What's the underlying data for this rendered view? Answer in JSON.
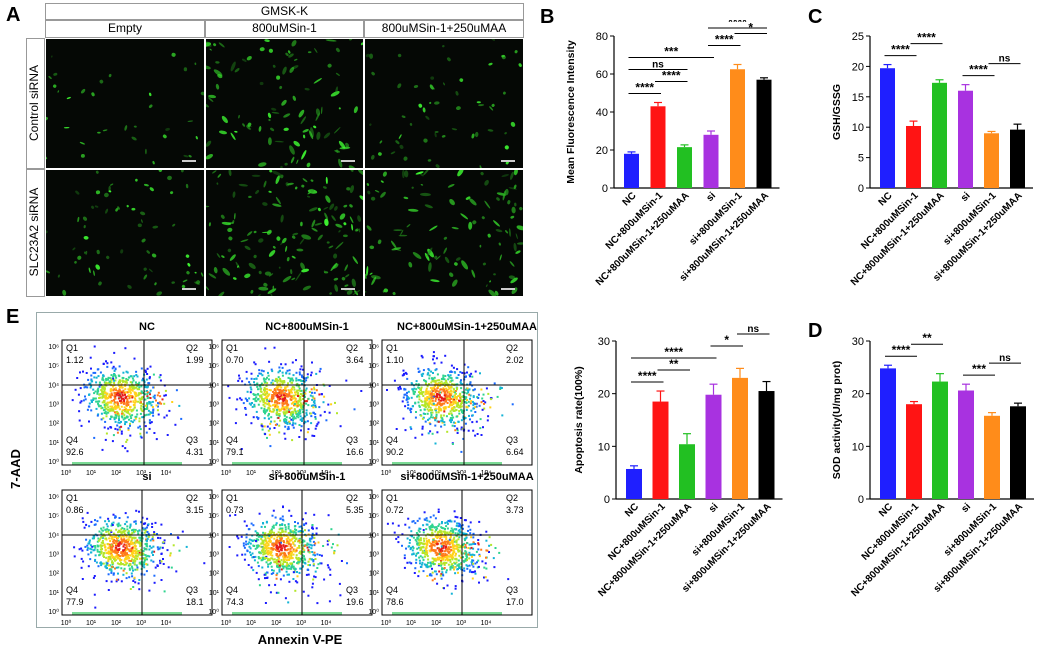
{
  "panels": {
    "A": {
      "letter": "A",
      "group_header": "GMSK-K",
      "columns": [
        "Empty",
        "800uMSin-1",
        "800uMSin-1+250uMAA"
      ],
      "rows": [
        "Control siRNA",
        "SLC23A2 siRNA"
      ],
      "cell_density": [
        [
          0.15,
          0.55,
          0.3
        ],
        [
          0.35,
          0.85,
          0.6
        ]
      ]
    },
    "B": {
      "letter": "B"
    },
    "C": {
      "letter": "C"
    },
    "D": {
      "letter": "D"
    },
    "E": {
      "letter": "E",
      "y_axis_label": "7-AAD",
      "x_axis_label": "Annexin V-PE",
      "plots": [
        {
          "title": "NC",
          "Q1": "1.12",
          "Q2": "1.99",
          "Q3": "4.31",
          "Q4": "92.6",
          "q1": "Q1",
          "q2": "Q2",
          "q3": "Q3",
          "q4": "Q4"
        },
        {
          "title": "NC+800uMSin-1",
          "Q1": "0.70",
          "Q2": "3.64",
          "Q3": "16.6",
          "Q4": "79.1",
          "q1": "Q1",
          "q2": "Q2",
          "q3": "Q3",
          "q4": "Q4"
        },
        {
          "title": "NC+800uMSin-1+250uMAA",
          "Q1": "1.10",
          "Q2": "2.02",
          "Q3": "6.64",
          "Q4": "90.2",
          "q1": "Q1",
          "q2": "Q2",
          "q3": "Q3",
          "q4": "Q4"
        },
        {
          "title": "si",
          "Q1": "0.86",
          "Q2": "3.15",
          "Q3": "18.1",
          "Q4": "77.9",
          "q1": "Q1",
          "q2": "Q2",
          "q3": "Q3",
          "q4": "Q4"
        },
        {
          "title": "si+800uMSin-1",
          "Q1": "0.73",
          "Q2": "5.35",
          "Q3": "19.6",
          "Q4": "74.3",
          "q1": "Q1",
          "q2": "Q2",
          "q3": "Q3",
          "q4": "Q4"
        },
        {
          "title": "si+800uMSin-1+250uMAA",
          "Q1": "0.72",
          "Q2": "3.73",
          "Q3": "17.0",
          "Q4": "78.6",
          "q1": "Q1",
          "q2": "Q2",
          "q3": "Q3",
          "q4": "Q4"
        }
      ],
      "tick_labels": [
        "10⁰",
        "10¹",
        "10²",
        "10³",
        "10⁴",
        "10⁵",
        "10⁶"
      ]
    }
  },
  "chart_data": [
    {
      "id": "B",
      "type": "bar",
      "categories": [
        "NC",
        "NC+800uMSin-1",
        "NC+800uMSin-1+250uMAA",
        "si",
        "si+800uMSin-1",
        "si+800uMSin-1+250uMAA"
      ],
      "values": [
        18,
        43,
        21.5,
        28,
        62.5,
        57
      ],
      "errors": [
        1,
        2,
        1.2,
        2,
        2.5,
        1
      ],
      "colors": [
        "#1f1fff",
        "#ff1414",
        "#22c022",
        "#a832e0",
        "#ff8c1a",
        "#000000"
      ],
      "ylabel": "Mean Fluorescence Intensity",
      "ylim": [
        0,
        80
      ],
      "yticks": [
        "0",
        "20",
        "40",
        "60",
        "80"
      ],
      "brackets": [
        {
          "from": 0,
          "to": 1,
          "label": "****"
        },
        {
          "from": 1,
          "to": 2,
          "label": "****"
        },
        {
          "from": 0,
          "to": 2,
          "label": "ns"
        },
        {
          "from": 0,
          "to": 3,
          "label": "***"
        },
        {
          "from": 3,
          "to": 4,
          "label": "****"
        },
        {
          "from": 4,
          "to": 5,
          "label": "*"
        },
        {
          "from": 3,
          "to": 5,
          "label": "****"
        }
      ]
    },
    {
      "id": "C",
      "type": "bar",
      "categories": [
        "NC",
        "NC+800uMSin-1",
        "NC+800uMSin-1+250uMAA",
        "si",
        "si+800uMSin-1",
        "si+800uMSin-1+250uMAA"
      ],
      "values": [
        19.7,
        10.2,
        17.3,
        16,
        9,
        9.6
      ],
      "errors": [
        0.6,
        0.8,
        0.5,
        1,
        0.3,
        0.9
      ],
      "colors": [
        "#1f1fff",
        "#ff1414",
        "#22c022",
        "#a832e0",
        "#ff8c1a",
        "#000000"
      ],
      "ylabel": "GSH/GSSG",
      "ylim": [
        0,
        25
      ],
      "yticks": [
        "0",
        "5",
        "10",
        "15",
        "20",
        "25"
      ],
      "brackets": [
        {
          "from": 0,
          "to": 1,
          "label": "****"
        },
        {
          "from": 1,
          "to": 2,
          "label": "****"
        },
        {
          "from": 3,
          "to": 4,
          "label": "****"
        },
        {
          "from": 4,
          "to": 5,
          "label": "ns"
        }
      ]
    },
    {
      "id": "E-apoptosis",
      "type": "bar",
      "categories": [
        "NC",
        "NC+800uMSin-1",
        "NC+800uMSin-1+250uMAA",
        "si",
        "si+800uMSin-1",
        "si+800uMSin-1+250uMAA"
      ],
      "values": [
        5.7,
        18.5,
        10.4,
        19.8,
        23,
        20.5
      ],
      "errors": [
        0.6,
        2,
        2,
        2,
        1.8,
        1.8
      ],
      "colors": [
        "#1f1fff",
        "#ff1414",
        "#22c022",
        "#a832e0",
        "#ff8c1a",
        "#000000"
      ],
      "ylabel": "Apoptosis rate(100%)",
      "ylim": [
        0,
        30
      ],
      "yticks": [
        "0",
        "10",
        "20",
        "30"
      ],
      "brackets": [
        {
          "from": 0,
          "to": 1,
          "label": "****"
        },
        {
          "from": 1,
          "to": 2,
          "label": "**"
        },
        {
          "from": 0,
          "to": 3,
          "label": "****"
        },
        {
          "from": 3,
          "to": 4,
          "label": "*"
        },
        {
          "from": 4,
          "to": 5,
          "label": "ns"
        }
      ]
    },
    {
      "id": "D",
      "type": "bar",
      "categories": [
        "NC",
        "NC+800uMSin-1",
        "NC+800uMSin-1+250uMAA",
        "si",
        "si+800uMSin-1",
        "si+800uMSin-1+250uMAA"
      ],
      "values": [
        24.8,
        18,
        22.3,
        20.6,
        15.8,
        17.6
      ],
      "errors": [
        0.6,
        0.5,
        1.5,
        1.2,
        0.6,
        0.6
      ],
      "colors": [
        "#1f1fff",
        "#ff1414",
        "#22c022",
        "#a832e0",
        "#ff8c1a",
        "#000000"
      ],
      "ylabel": "SOD activity(U/mg prot)",
      "ylim": [
        0,
        30
      ],
      "yticks": [
        "0",
        "10",
        "20",
        "30"
      ],
      "brackets": [
        {
          "from": 0,
          "to": 1,
          "label": "****"
        },
        {
          "from": 1,
          "to": 2,
          "label": "**"
        },
        {
          "from": 3,
          "to": 4,
          "label": "***"
        },
        {
          "from": 4,
          "to": 5,
          "label": "ns"
        }
      ]
    }
  ]
}
